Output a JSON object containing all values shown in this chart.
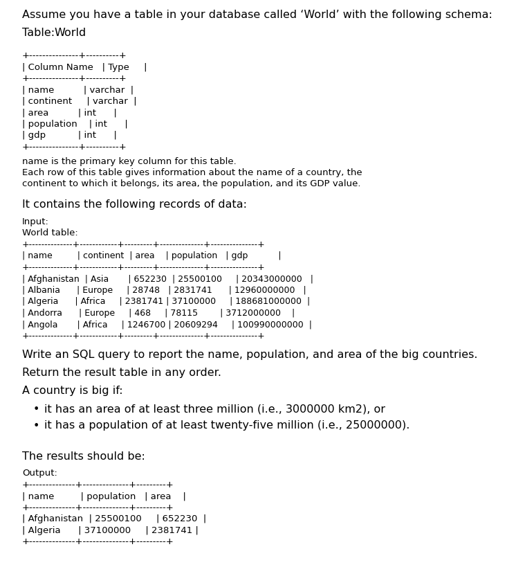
{
  "bg_color": "#ffffff",
  "text_color": "#000000",
  "title_line": "Assume you have a table in your database called ‘World’ with the following schema:",
  "table_label_normal": "Table: ",
  "table_label_mono": "World",
  "schema_table": [
    "+---------------+----------+",
    "| Column Name   | Type     |",
    "+---------------+----------+",
    "| name          | varchar  |",
    "| continent     | varchar  |",
    "| area          | int      |",
    "| population    | int      |",
    "| gdp           | int      |",
    "+---------------+----------+"
  ],
  "description_lines": [
    "name is the primary key column for this table.",
    "Each row of this table gives information about the name of a country, the",
    "continent to which it belongs, its area, the population, and its GDP value."
  ],
  "section2_header": "It contains the following records of data:",
  "input_label": "Input:",
  "world_table_label": "World table:",
  "world_table": [
    "+--------------+------------+---------+--------------+---------------+",
    "| name         | continent  | area    | population   | gdp           |",
    "+--------------+------------+---------+--------------+---------------+",
    "| Afghanistan  | Asia       | 652230  | 25500100     | 20343000000   |",
    "| Albania      | Europe     | 28748   | 2831741      | 12960000000   |",
    "| Algeria      | Africa     | 2381741 | 37100000     | 188681000000  |",
    "| Andorra      | Europe     | 468     | 78115        | 3712000000    |",
    "| Angola       | Africa     | 1246700 | 20609294     | 100990000000  |",
    "+--------------+------------+---------+--------------+---------------+"
  ],
  "query_text": "Write an SQL query to report the name, population, and area of the big countries.",
  "return_text": "Return the result table in any order.",
  "big_country_header": "A country is big if:",
  "bullet1": "it has an area of at least three million (i.e., 3000000 km2), or",
  "bullet2": "it has a population of at least twenty-five million (i.e., 25000000).",
  "results_header": "The results should be:",
  "output_label": "Output:",
  "output_table": [
    "+--------------+--------------+---------+",
    "| name         | population   | area    |",
    "+--------------+--------------+---------+",
    "| Afghanistan  | 25500100     | 652230  |",
    "| Algeria      | 37100000     | 2381741 |",
    "+--------------+--------------+---------+"
  ]
}
